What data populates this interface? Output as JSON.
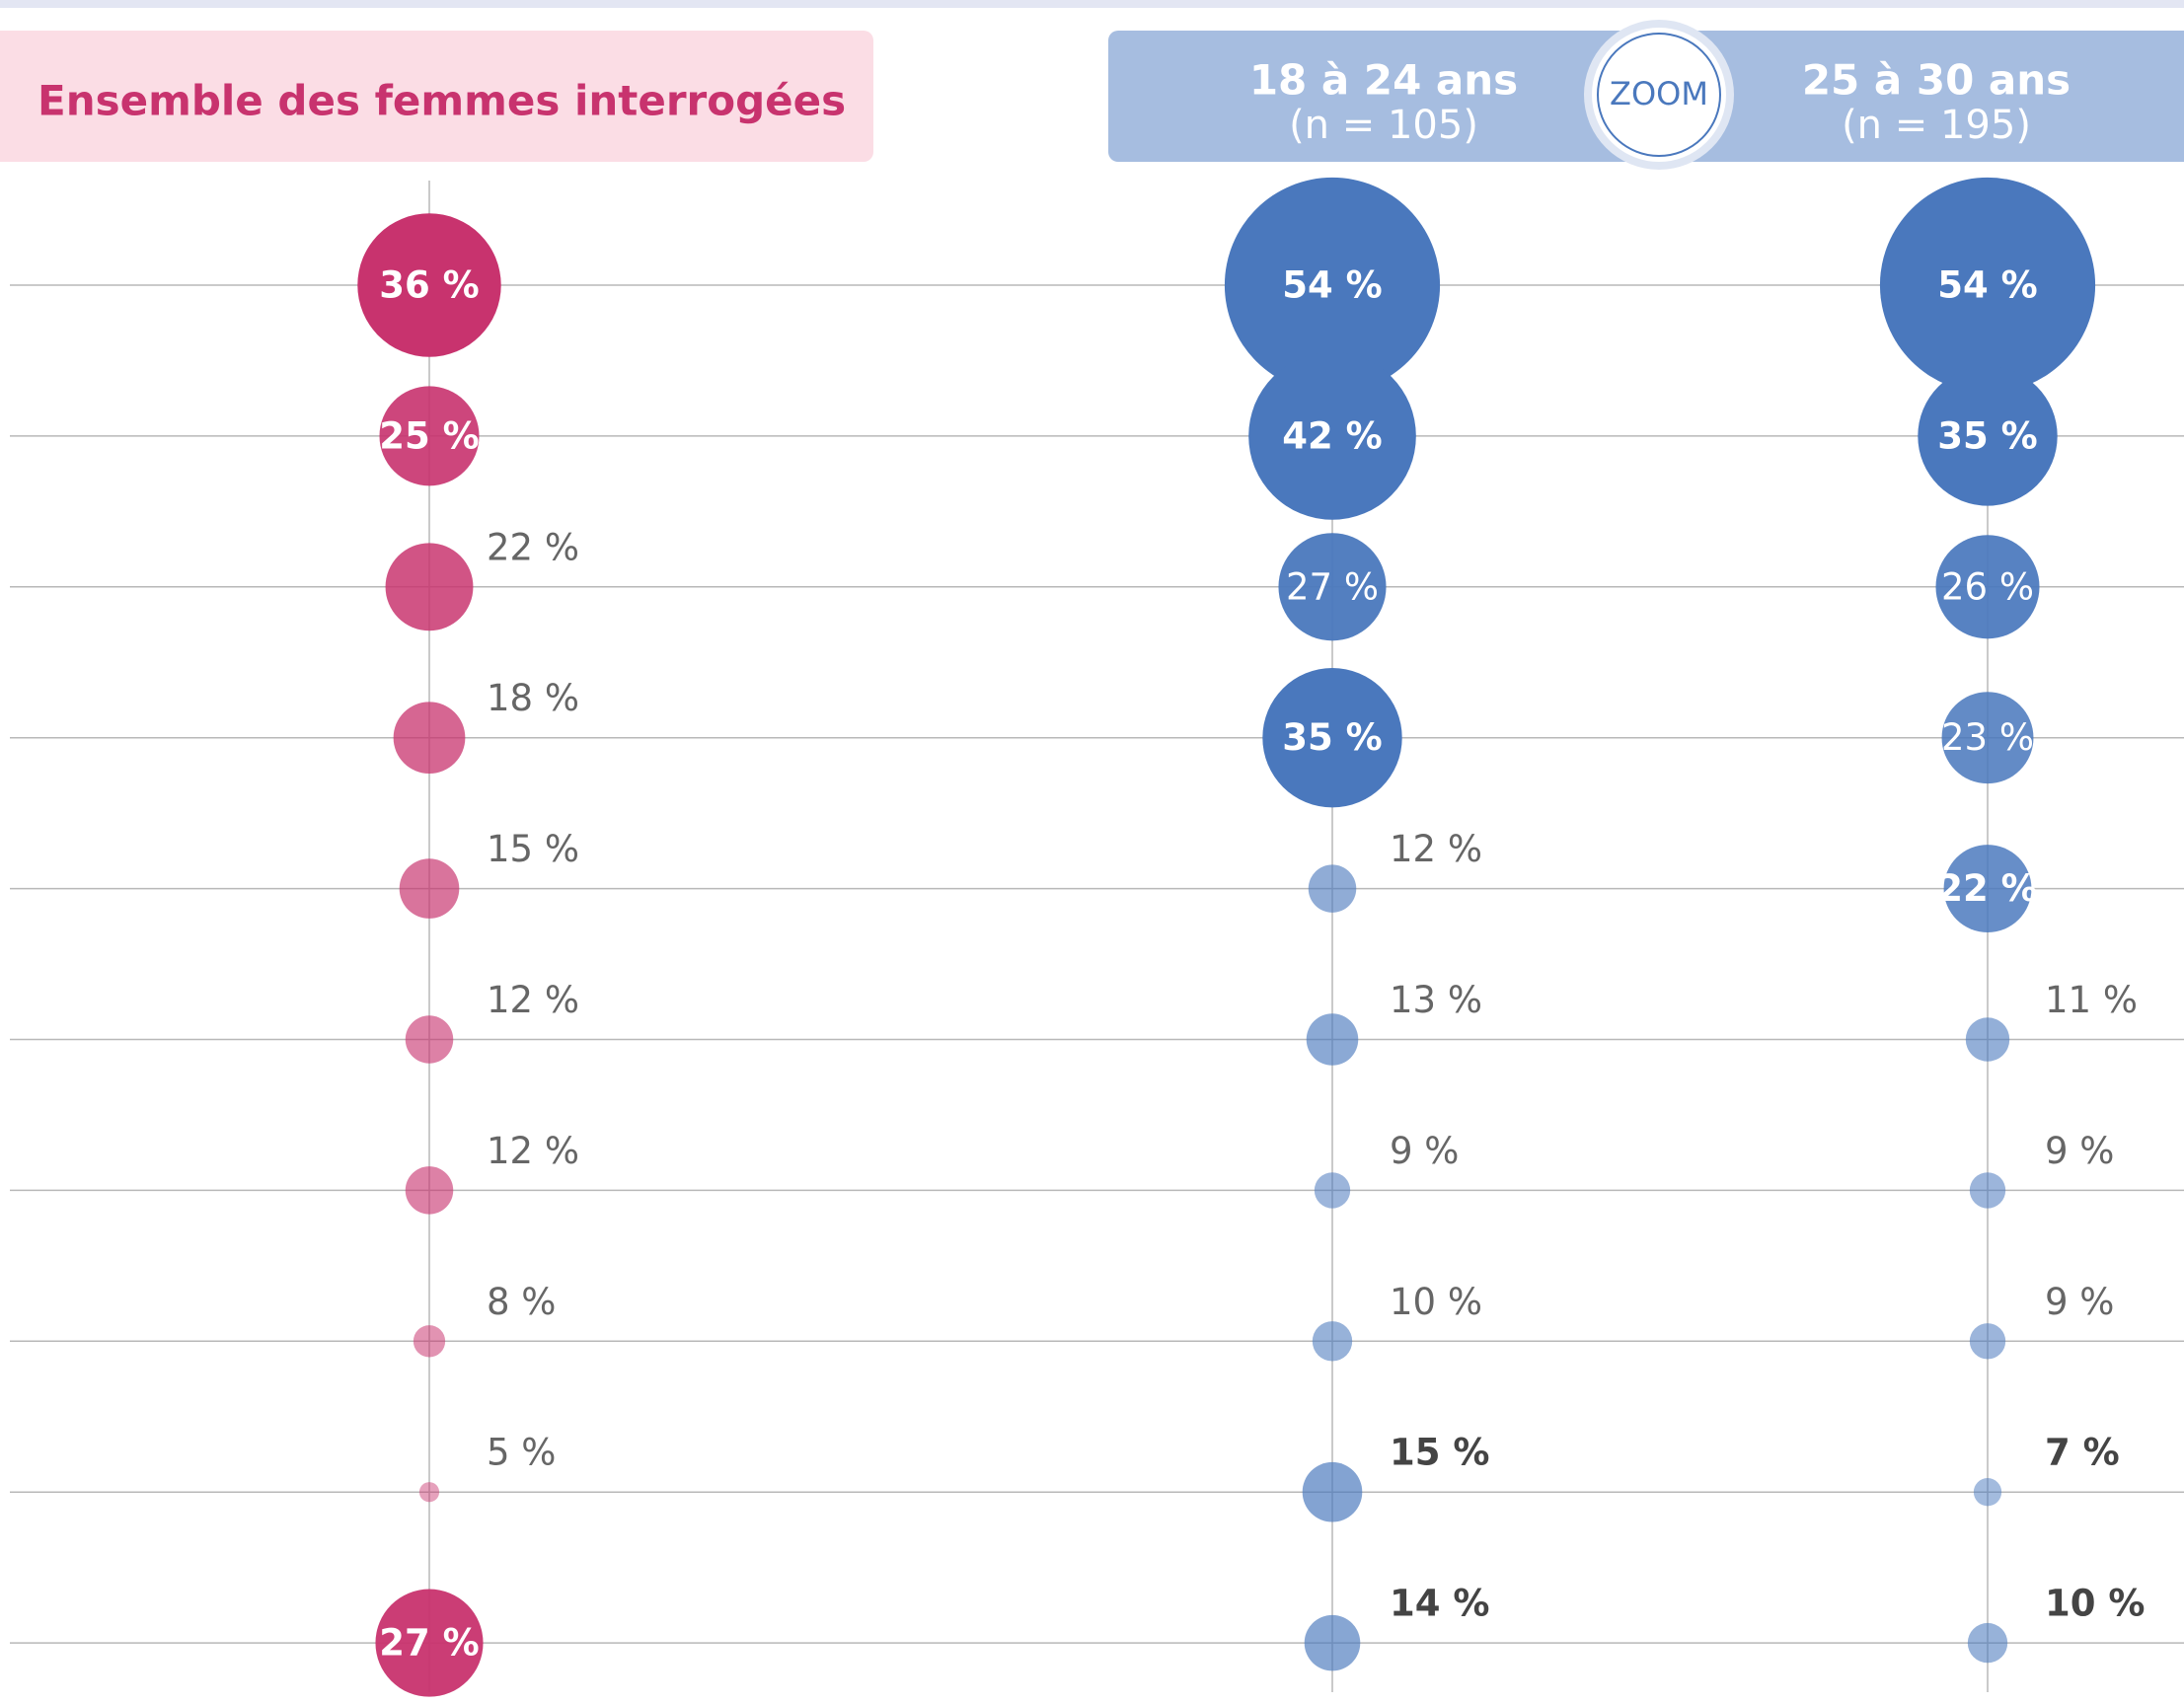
{
  "chart_data": {
    "type": "bubble",
    "annotation": "ZOOM",
    "series": [
      {
        "name": "Ensemble des femmes interrogées",
        "color": "#c8336e",
        "values": [
          36,
          25,
          22,
          18,
          15,
          12,
          12,
          8,
          5,
          27
        ],
        "value_labels": [
          "36 %",
          "25 %",
          "22 %",
          "18 %",
          "15 %",
          "12 %",
          "12 %",
          "8 %",
          "5 %",
          "27 %"
        ]
      },
      {
        "name": "18 à 24 ans",
        "sample": "(n = 105)",
        "color": "#4a78bd",
        "values": [
          54,
          42,
          27,
          35,
          12,
          13,
          9,
          10,
          15,
          14
        ],
        "value_labels": [
          "54 %",
          "42 %",
          "27 %",
          "35 %",
          "12 %",
          "13 %",
          "9 %",
          "10 %",
          "15 %",
          "14 %"
        ]
      },
      {
        "name": "25 à 30 ans",
        "sample": "(n = 195)",
        "color": "#4a78bd",
        "values": [
          54,
          35,
          26,
          23,
          22,
          11,
          9,
          9,
          7,
          10
        ],
        "value_labels": [
          "54 %",
          "35 %",
          "26 %",
          "23 %",
          "22 %",
          "11 %",
          "9 %",
          "9 %",
          "7 %",
          "10 %"
        ]
      }
    ]
  }
}
